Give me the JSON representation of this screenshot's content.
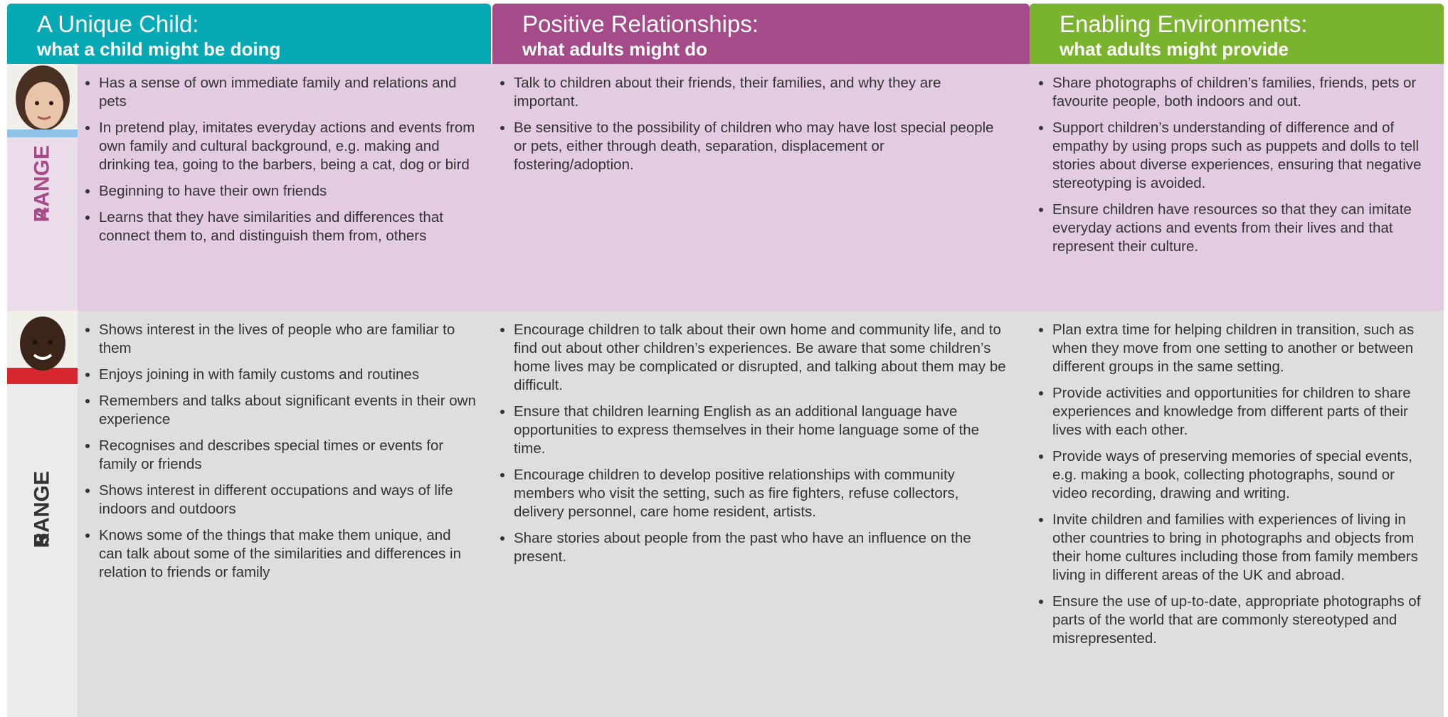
{
  "columns": [
    {
      "title": "A Unique Child:",
      "subtitle": "what a child might be doing"
    },
    {
      "title": "Positive Relationships:",
      "subtitle": "what adults might do"
    },
    {
      "title": "Enabling Environments:",
      "subtitle": "what adults might provide"
    }
  ],
  "rows": [
    {
      "range": "RANGE",
      "number": "4",
      "cells": [
        [
          "Has a sense of own immediate family and relations and pets",
          "In pretend play, imitates everyday actions and events from own family and cultural background, e.g. making and drinking tea, going to the barbers, being a cat, dog or bird",
          "Beginning to have their own friends",
          "Learns that they have similarities and differences that connect them to, and distinguish them from, others"
        ],
        [
          "Talk to children about their friends, their families, and why they are important.",
          "Be sensitive to the possibility of children who may have lost special people or pets, either through death, separation, displacement or fostering/adoption."
        ],
        [
          "Share photographs of children’s families, friends, pets or favourite people, both indoors and out.",
          "Support children’s understanding of difference and of empathy by using props such as puppets and dolls to tell stories about diverse experiences, ensuring that negative stereotyping is avoided.",
          "Ensure children have resources so that they can imitate everyday actions and events from their lives and that represent their culture."
        ]
      ]
    },
    {
      "range": "RANGE",
      "number": "5",
      "cells": [
        [
          "Shows interest in the lives of people who are familiar to them",
          "Enjoys joining in with family customs and routines",
          "Remembers and talks about significant events in their own experience",
          "Recognises and describes special times or events for family or friends",
          "Shows interest in different occupations and ways of life indoors and outdoors",
          "Knows some of the things that make them unique, and can talk about some of the similarities and differences in relation to friends or family"
        ],
        [
          "Encourage children to talk about their own home and community life, and to find out about other children’s experiences. Be aware that some children’s home lives may be complicated or disrupted, and talking about them may be difficult.",
          "Ensure that children learning English as an additional language have opportunities to express themselves in their home language some of the time.",
          "Encourage children to develop positive relationships with community members who visit the setting, such as fire fighters, refuse collectors, delivery personnel, care home resident, artists.",
          "Share stories about people from the past who have an influence on the present."
        ],
        [
          "Plan extra time for helping children in transition, such as when they move from one setting to another or between different groups in the same setting.",
          "Provide activities and opportunities for children to share experiences and knowledge from different parts of their lives with each other.",
          "Provide ways of preserving memories of special events, e.g. making a book, collecting photographs, sound or video recording, drawing and writing.",
          "Invite children and families with experiences of living in other countries to bring in photographs and objects from their home cultures including those from family members living in different areas of the UK and abroad.",
          "Ensure the use of up-to-date, appropriate photographs of parts of the world that are commonly stereotyped and misrepresented."
        ]
      ]
    }
  ]
}
